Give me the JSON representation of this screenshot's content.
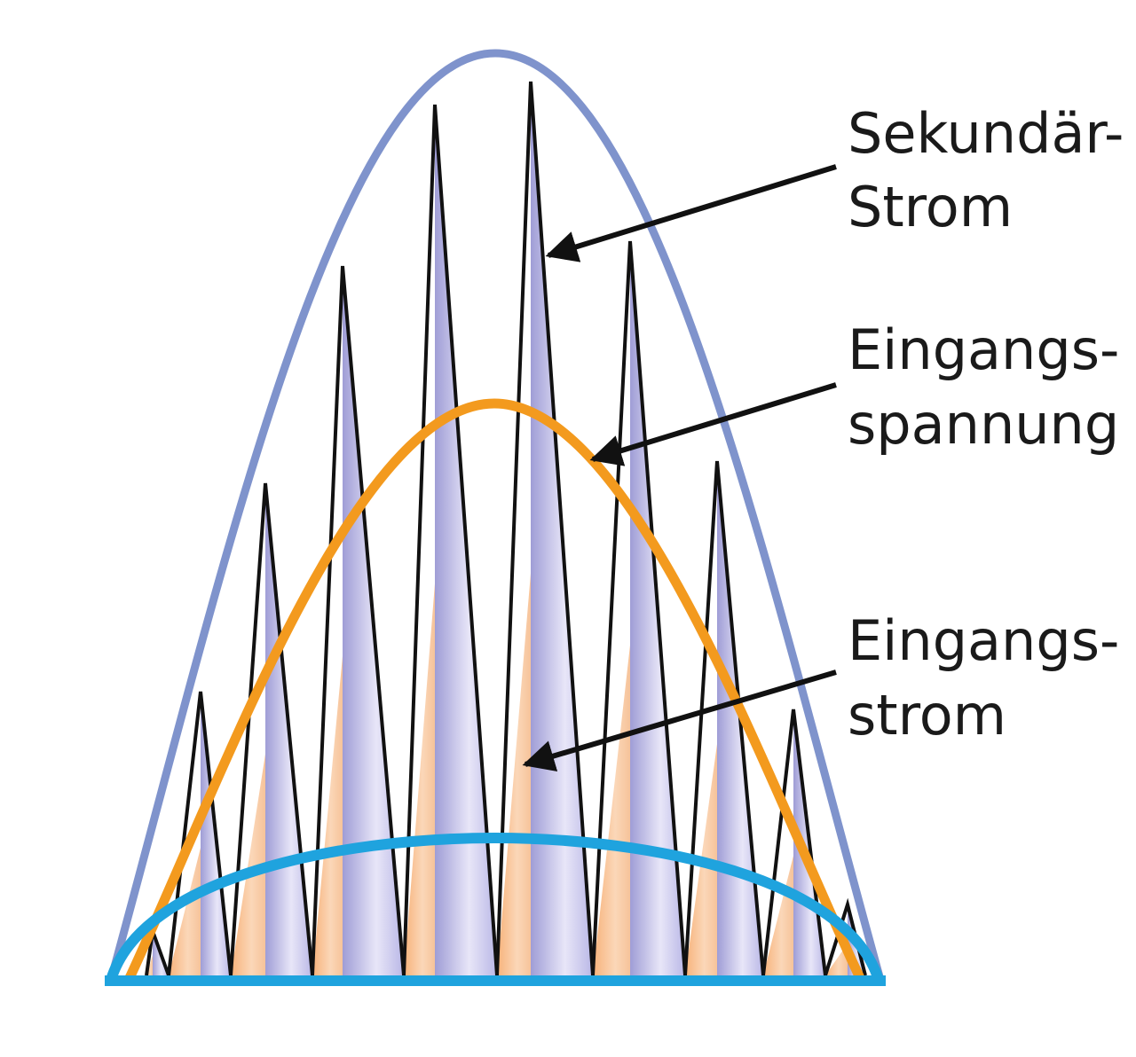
{
  "labels": {
    "secondary_current": [
      "Sekundär-",
      "Strom"
    ],
    "input_voltage": [
      "Eingangs-",
      "spannung"
    ],
    "input_current": [
      "Eingangs-",
      "strom"
    ]
  },
  "colors": {
    "secondary_current_envelope": "#7f93cc",
    "input_voltage_curve": "#f39a1e",
    "input_current_curve": "#1fa3de",
    "secondary_spike_fill": "#c6c4ea",
    "input_spike_fill": "#f9c497",
    "spike_outline": "#111111",
    "arrow": "#111111"
  },
  "icons": [
    "arrow-icon"
  ]
}
